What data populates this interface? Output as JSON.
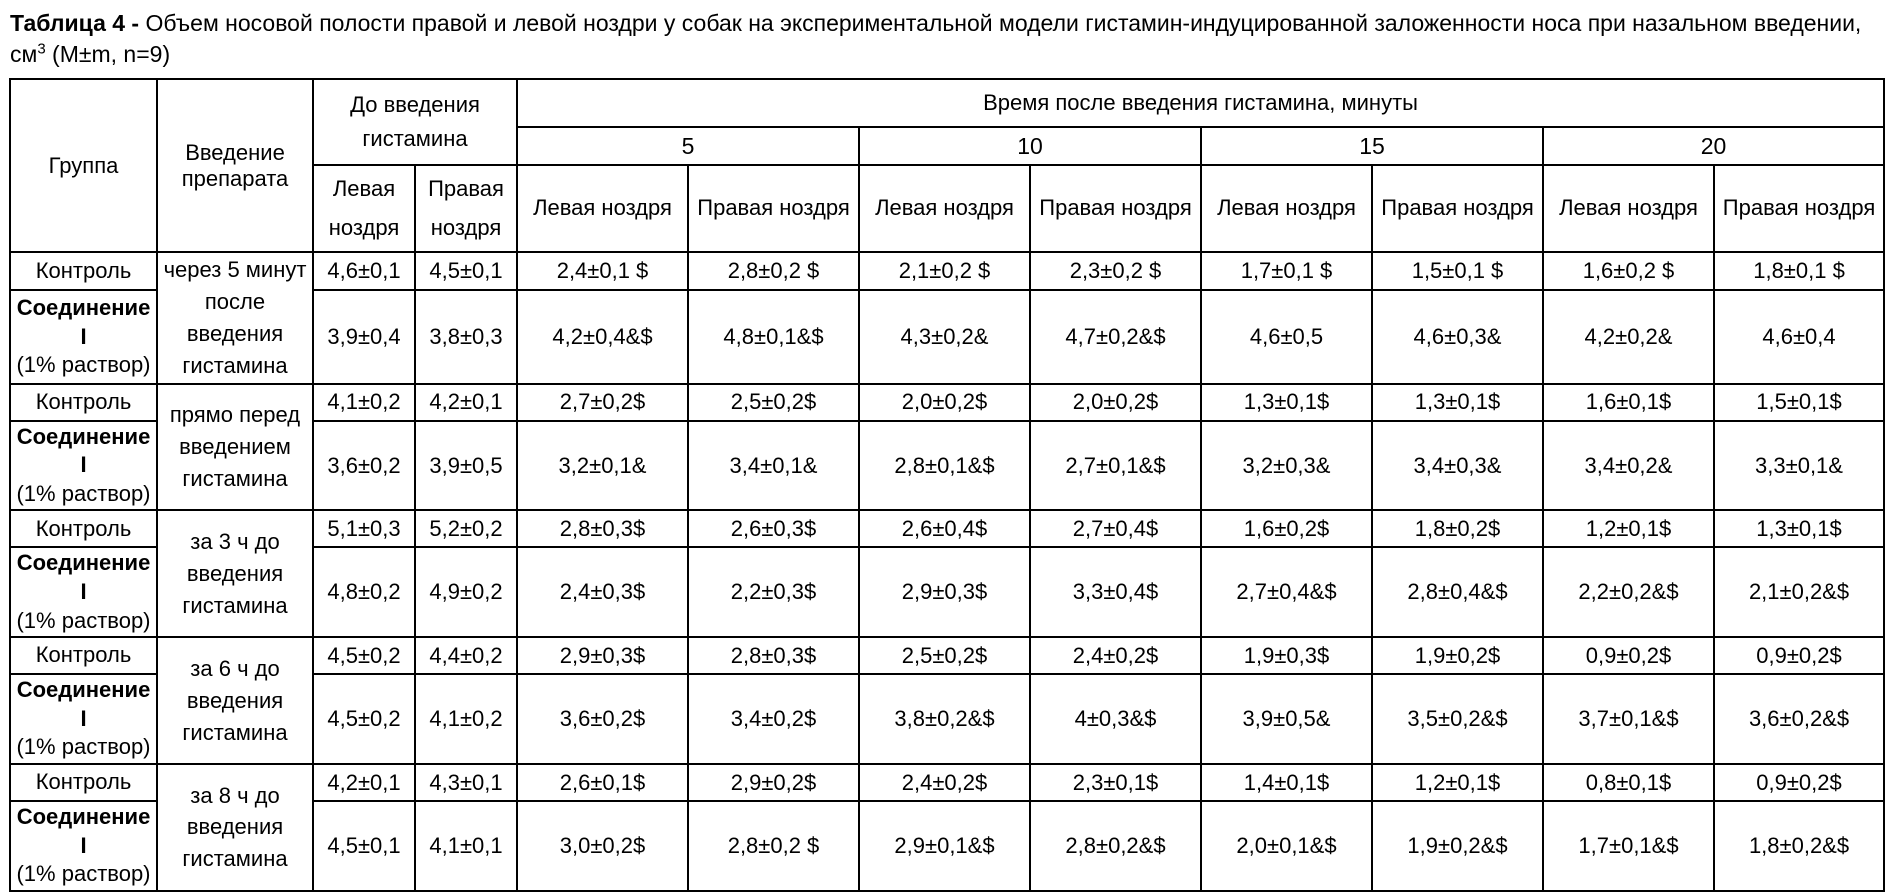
{
  "title": {
    "label": "Таблица 4 -",
    "body": "Объем носовой полости правой и левой ноздри у собак на экспериментальной модели гистамин-индуцированной заложенности носа при назальном введении, см",
    "sup": "3",
    "tail": " (M±m, n=9)"
  },
  "table": {
    "headers": {
      "group": "Группа",
      "administration": "Введение препарата",
      "before": "До введения гистамина",
      "after": "Время после введения гистамина, минуты",
      "times": [
        "5",
        "10",
        "15",
        "20"
      ],
      "left_nostril": "Левая ноздря",
      "right_nostril": "Правая ноздря"
    },
    "blocks": [
      {
        "timing": "через 5 минут после введения гистамина",
        "rows": [
          {
            "group": "Контроль",
            "group_bold": false,
            "group_sub": "",
            "values": [
              "4,6±0,1",
              "4,5±0,1",
              "2,4±0,1 $",
              "2,8±0,2 $",
              "2,1±0,2 $",
              "2,3±0,2 $",
              "1,7±0,1 $",
              "1,5±0,1 $",
              "1,6±0,2 $",
              "1,8±0,1 $"
            ]
          },
          {
            "group": "Соединение I",
            "group_bold": true,
            "group_sub": "(1% раствор)",
            "values": [
              "3,9±0,4",
              "3,8±0,3",
              "4,2±0,4&$",
              "4,8±0,1&$",
              "4,3±0,2&",
              "4,7±0,2&$",
              "4,6±0,5",
              "4,6±0,3&",
              "4,2±0,2&",
              "4,6±0,4"
            ]
          }
        ]
      },
      {
        "timing": "прямо перед введением гистамина",
        "rows": [
          {
            "group": "Контроль",
            "group_bold": false,
            "group_sub": "",
            "values": [
              "4,1±0,2",
              "4,2±0,1",
              "2,7±0,2$",
              "2,5±0,2$",
              "2,0±0,2$",
              "2,0±0,2$",
              "1,3±0,1$",
              "1,3±0,1$",
              "1,6±0,1$",
              "1,5±0,1$"
            ]
          },
          {
            "group": "Соединение I",
            "group_bold": true,
            "group_sub": "(1% раствор)",
            "values": [
              "3,6±0,2",
              "3,9±0,5",
              "3,2±0,1&",
              "3,4±0,1&",
              "2,8±0,1&$",
              "2,7±0,1&$",
              "3,2±0,3&",
              "3,4±0,3&",
              "3,4±0,2&",
              "3,3±0,1&"
            ]
          }
        ]
      },
      {
        "timing": "за 3 ч до введения гистамина",
        "rows": [
          {
            "group": "Контроль",
            "group_bold": false,
            "group_sub": "",
            "values": [
              "5,1±0,3",
              "5,2±0,2",
              "2,8±0,3$",
              "2,6±0,3$",
              "2,6±0,4$",
              "2,7±0,4$",
              "1,6±0,2$",
              "1,8±0,2$",
              "1,2±0,1$",
              "1,3±0,1$"
            ]
          },
          {
            "group": "Соединение I",
            "group_bold": true,
            "group_sub": "(1% раствор)",
            "values": [
              "4,8±0,2",
              "4,9±0,2",
              "2,4±0,3$",
              "2,2±0,3$",
              "2,9±0,3$",
              "3,3±0,4$",
              "2,7±0,4&$",
              "2,8±0,4&$",
              "2,2±0,2&$",
              "2,1±0,2&$"
            ]
          }
        ]
      },
      {
        "timing": "за 6 ч до введения гистамина",
        "rows": [
          {
            "group": "Контроль",
            "group_bold": false,
            "group_sub": "",
            "values": [
              "4,5±0,2",
              "4,4±0,2",
              "2,9±0,3$",
              "2,8±0,3$",
              "2,5±0,2$",
              "2,4±0,2$",
              "1,9±0,3$",
              "1,9±0,2$",
              "0,9±0,2$",
              "0,9±0,2$"
            ]
          },
          {
            "group": "Соединение I",
            "group_bold": true,
            "group_sub": "(1% раствор)",
            "values": [
              "4,5±0,2",
              "4,1±0,2",
              "3,6±0,2$",
              "3,4±0,2$",
              "3,8±0,2&$",
              "4±0,3&$",
              "3,9±0,5&",
              "3,5±0,2&$",
              "3,7±0,1&$",
              "3,6±0,2&$"
            ]
          }
        ]
      },
      {
        "timing": "за 8 ч до введения гистамина",
        "rows": [
          {
            "group": "Контроль",
            "group_bold": false,
            "group_sub": "",
            "values": [
              "4,2±0,1",
              "4,3±0,1",
              "2,6±0,1$",
              "2,9±0,2$",
              "2,4±0,2$",
              "2,3±0,1$",
              "1,4±0,1$",
              "1,2±0,1$",
              "0,8±0,1$",
              "0,9±0,2$"
            ]
          },
          {
            "group": "Соединение I",
            "group_bold": true,
            "group_sub": "(1% раствор)",
            "values": [
              "4,5±0,1",
              "4,1±0,1",
              "3,0±0,2$",
              "2,8±0,2 $",
              "2,9±0,1&$",
              "2,8±0,2&$",
              "2,0±0,1&$",
              "1,9±0,2&$",
              "1,7±0,1&$",
              "1,8±0,2&$"
            ]
          }
        ]
      }
    ]
  }
}
